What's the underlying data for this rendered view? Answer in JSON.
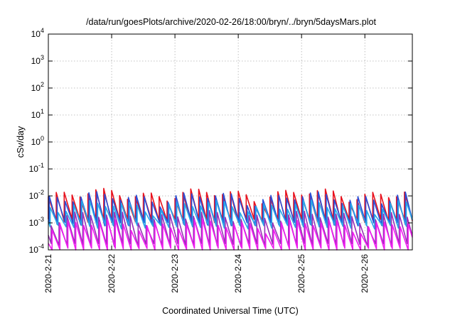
{
  "chart_data": {
    "type": "line",
    "title": "/data/run/goesPlots/archive/2020-02-26/18:00/bryn/../bryn/5daysMars.plot",
    "xlabel": "Coordinated Universal Time (UTC)",
    "ylabel": "cSv/day",
    "yscale": "log",
    "ylim": [
      0.0001,
      10000
    ],
    "xlim": [
      "2020-02-21T00:00",
      "2020-02-26T18:00"
    ],
    "x_tick_labels": [
      "2020-2-21",
      "2020-2-22",
      "2020-2-23",
      "2020-2-24",
      "2020-2-25",
      "2020-2-26"
    ],
    "y_ticks": [
      {
        "base": "10",
        "exp": "-4"
      },
      {
        "base": "10",
        "exp": "-3"
      },
      {
        "base": "10",
        "exp": "-2"
      },
      {
        "base": "10",
        "exp": "-1"
      },
      {
        "base": "10",
        "exp": "0"
      },
      {
        "base": "10",
        "exp": "1"
      },
      {
        "base": "10",
        "exp": "2"
      },
      {
        "base": "10",
        "exp": "3"
      },
      {
        "base": "10",
        "exp": "4"
      }
    ],
    "grid": true,
    "legend": "none",
    "cycle_hours": 3,
    "series": [
      {
        "color": "#e8101c",
        "high": 0.012,
        "low": 0.0012
      },
      {
        "color": "#2a4fd8",
        "high": 0.009,
        "low": 0.0009
      },
      {
        "color": "#28a8e8",
        "high": 0.0045,
        "low": 0.0007
      },
      {
        "color": "#9a30b8",
        "high": 0.0018,
        "low": 0.00015
      },
      {
        "color": "#f01ef0",
        "high": 0.0009,
        "low": 0.0001
      }
    ]
  }
}
